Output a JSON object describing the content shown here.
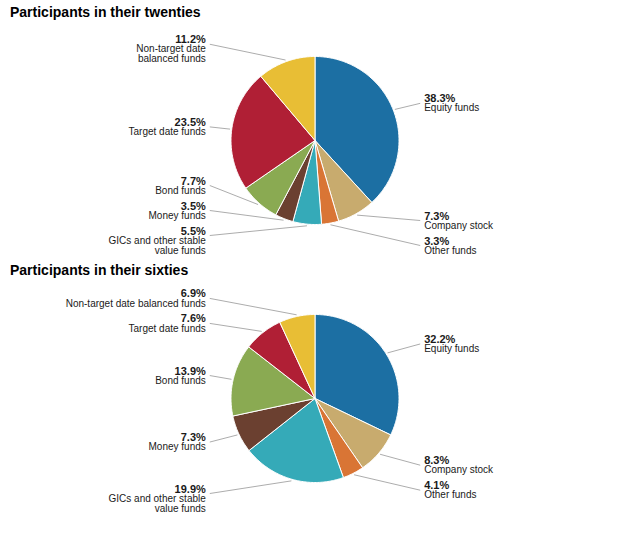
{
  "chart_data": [
    {
      "type": "pie",
      "title": "Participants in their twenties",
      "categories": [
        "Equity funds",
        "Company stock",
        "Other funds",
        "GICs and other stable\nvalue funds",
        "Money funds",
        "Bond funds",
        "Target date funds",
        "Non-target date\nbalanced funds"
      ],
      "values": [
        38.3,
        7.3,
        3.3,
        5.5,
        3.5,
        7.7,
        23.5,
        11.2
      ],
      "value_labels": [
        "38.3%",
        "7.3%",
        "3.3%",
        "5.5%",
        "3.5%",
        "7.7%",
        "23.5%",
        "11.2%"
      ],
      "colors": [
        "#1c6fa3",
        "#c8ab6e",
        "#d97535",
        "#35aab8",
        "#6b4030",
        "#8aaa52",
        "#b01f35",
        "#e8be35"
      ],
      "data_labels": true
    },
    {
      "type": "pie",
      "title": "Participants in their sixties",
      "categories": [
        "Equity funds",
        "Company stock",
        "Other funds",
        "GICs and other stable\nvalue funds",
        "Money funds",
        "Bond funds",
        "Target date funds",
        "Non-target date balanced funds"
      ],
      "values": [
        32.2,
        8.3,
        4.1,
        19.9,
        7.3,
        13.9,
        7.6,
        6.9
      ],
      "value_labels": [
        "32.2%",
        "8.3%",
        "4.1%",
        "19.9%",
        "7.3%",
        "13.9%",
        "7.6%",
        "6.9%"
      ],
      "colors": [
        "#1c6fa3",
        "#c8ab6e",
        "#d97535",
        "#35aab8",
        "#6b4030",
        "#8aaa52",
        "#b01f35",
        "#e8be35"
      ],
      "data_labels": true
    }
  ]
}
